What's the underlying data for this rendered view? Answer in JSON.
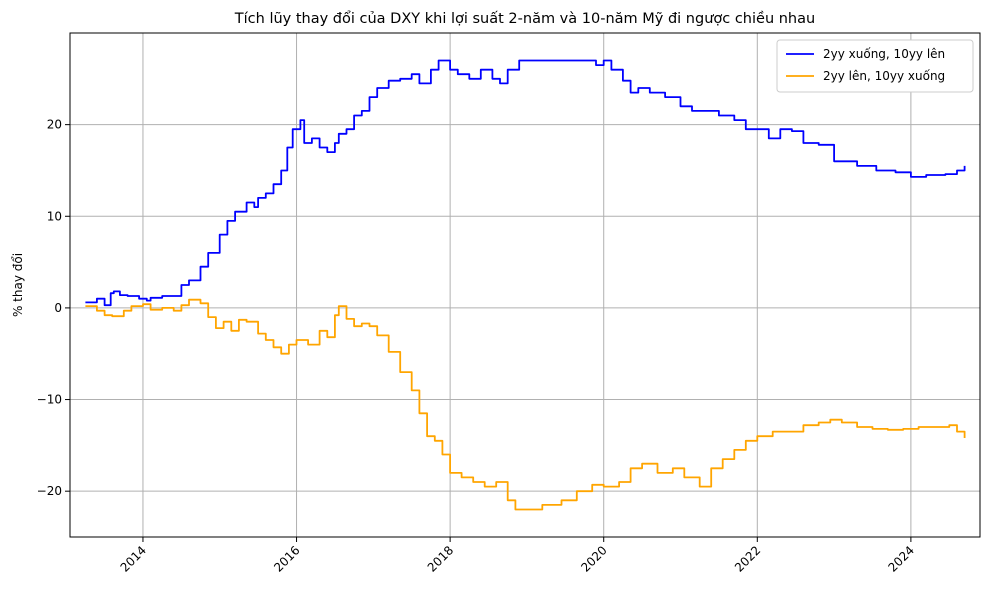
{
  "chart_data": {
    "type": "line",
    "title": "Tích lũy thay đổi của DXY khi lợi suất 2-năm và 10-năm Mỹ đi ngược chiều nhau",
    "xlabel": "",
    "ylabel": "% thay đổi",
    "xlim": [
      2013.05,
      2024.9
    ],
    "ylim": [
      -25,
      30
    ],
    "x_ticks": [
      2014,
      2016,
      2018,
      2020,
      2022,
      2024
    ],
    "x_tick_labels": [
      "2014",
      "2016",
      "2018",
      "2020",
      "2022",
      "2024"
    ],
    "y_ticks": [
      -20,
      -10,
      0,
      10,
      20
    ],
    "y_tick_labels": [
      "−20",
      "−10",
      "0",
      "10",
      "20"
    ],
    "grid": true,
    "legend_position": "top-right",
    "series": [
      {
        "name": "2yy xuống, 10yy lên",
        "color": "#0000ff",
        "x": [
          2013.25,
          2013.4,
          2013.5,
          2013.58,
          2013.62,
          2013.7,
          2013.8,
          2013.95,
          2014.05,
          2014.1,
          2014.25,
          2014.5,
          2014.6,
          2014.75,
          2014.85,
          2015.0,
          2015.1,
          2015.2,
          2015.35,
          2015.45,
          2015.5,
          2015.6,
          2015.7,
          2015.8,
          2015.88,
          2015.95,
          2016.05,
          2016.1,
          2016.2,
          2016.3,
          2016.4,
          2016.5,
          2016.55,
          2016.65,
          2016.75,
          2016.85,
          2016.95,
          2017.05,
          2017.2,
          2017.35,
          2017.5,
          2017.6,
          2017.75,
          2017.85,
          2018.0,
          2018.1,
          2018.25,
          2018.4,
          2018.55,
          2018.65,
          2018.75,
          2018.9,
          2019.1,
          2019.3,
          2019.5,
          2019.7,
          2019.9,
          2020.0,
          2020.1,
          2020.25,
          2020.35,
          2020.45,
          2020.6,
          2020.8,
          2021.0,
          2021.15,
          2021.3,
          2021.5,
          2021.7,
          2021.85,
          2022.0,
          2022.15,
          2022.3,
          2022.45,
          2022.6,
          2022.8,
          2023.0,
          2023.3,
          2023.55,
          2023.8,
          2024.0,
          2024.2,
          2024.45,
          2024.6,
          2024.7
        ],
        "values": [
          0.6,
          1.0,
          0.3,
          1.6,
          1.8,
          1.4,
          1.3,
          1.0,
          0.8,
          1.1,
          1.3,
          2.5,
          3.0,
          4.5,
          6.0,
          8.0,
          9.5,
          10.5,
          11.5,
          11.0,
          12.0,
          12.5,
          13.5,
          15.0,
          17.5,
          19.5,
          20.5,
          18.0,
          18.5,
          17.5,
          17.0,
          18.0,
          19.0,
          19.5,
          21.0,
          21.5,
          23.0,
          24.0,
          24.8,
          25.0,
          25.5,
          24.5,
          26.0,
          27.0,
          26.0,
          25.5,
          25.0,
          26.0,
          25.0,
          24.5,
          26.0,
          27.0,
          27.0,
          27.0,
          27.0,
          27.0,
          26.5,
          27.0,
          26.0,
          24.8,
          23.5,
          24.0,
          23.5,
          23.0,
          22.0,
          21.5,
          21.5,
          21.0,
          20.5,
          19.5,
          19.5,
          18.5,
          19.5,
          19.3,
          18.0,
          17.8,
          16.0,
          15.5,
          15.0,
          14.8,
          14.3,
          14.5,
          14.6,
          15.0,
          15.5
        ]
      },
      {
        "name": "2yy lên, 10yy xuống",
        "color": "#ffa500",
        "x": [
          2013.25,
          2013.4,
          2013.5,
          2013.6,
          2013.75,
          2013.85,
          2014.0,
          2014.1,
          2014.25,
          2014.4,
          2014.5,
          2014.6,
          2014.75,
          2014.85,
          2014.95,
          2015.05,
          2015.15,
          2015.25,
          2015.35,
          2015.5,
          2015.6,
          2015.7,
          2015.8,
          2015.9,
          2016.0,
          2016.15,
          2016.3,
          2016.4,
          2016.5,
          2016.55,
          2016.65,
          2016.75,
          2016.85,
          2016.95,
          2017.05,
          2017.2,
          2017.35,
          2017.5,
          2017.6,
          2017.7,
          2017.8,
          2017.9,
          2018.0,
          2018.15,
          2018.3,
          2018.45,
          2018.6,
          2018.75,
          2018.85,
          2019.0,
          2019.2,
          2019.45,
          2019.65,
          2019.85,
          2020.0,
          2020.2,
          2020.35,
          2020.5,
          2020.7,
          2020.9,
          2021.05,
          2021.25,
          2021.4,
          2021.55,
          2021.7,
          2021.85,
          2022.0,
          2022.2,
          2022.4,
          2022.6,
          2022.8,
          2022.95,
          2023.1,
          2023.3,
          2023.5,
          2023.7,
          2023.9,
          2024.1,
          2024.3,
          2024.5,
          2024.6,
          2024.7
        ],
        "values": [
          0.2,
          -0.3,
          -0.8,
          -0.9,
          -0.3,
          0.2,
          0.4,
          -0.2,
          0.0,
          -0.3,
          0.3,
          0.9,
          0.5,
          -1.0,
          -2.2,
          -1.5,
          -2.5,
          -1.3,
          -1.5,
          -2.8,
          -3.5,
          -4.3,
          -5.0,
          -4.0,
          -3.5,
          -4.0,
          -2.5,
          -3.2,
          -0.8,
          0.2,
          -1.2,
          -2.0,
          -1.7,
          -2.0,
          -3.0,
          -4.8,
          -7.0,
          -9.0,
          -11.5,
          -14.0,
          -14.5,
          -16.0,
          -18.0,
          -18.5,
          -19.0,
          -19.5,
          -19.0,
          -21.0,
          -22.0,
          -22.0,
          -21.5,
          -21.0,
          -20.0,
          -19.3,
          -19.5,
          -19.0,
          -17.5,
          -17.0,
          -18.0,
          -17.5,
          -18.5,
          -19.5,
          -17.5,
          -16.5,
          -15.5,
          -14.5,
          -14.0,
          -13.5,
          -13.5,
          -12.8,
          -12.5,
          -12.2,
          -12.5,
          -13.0,
          -13.2,
          -13.3,
          -13.2,
          -13.0,
          -13.0,
          -12.8,
          -13.5,
          -14.2
        ]
      }
    ]
  }
}
